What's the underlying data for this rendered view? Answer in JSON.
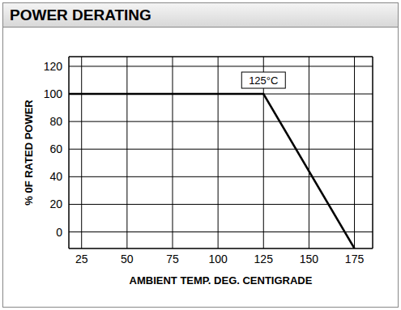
{
  "chart_data": {
    "type": "line",
    "title": "POWER DERATING",
    "x_label": "AMBIENT TEMP. DEG. CENTIGRADE",
    "y_label": "% 0F RATED POWER",
    "x": [
      18,
      125,
      175
    ],
    "values": [
      100,
      100,
      -12
    ],
    "color": "#000000",
    "xlim": [
      18,
      185
    ],
    "ylim": [
      -12,
      127
    ],
    "xticks": [
      25,
      50,
      75,
      100,
      125,
      150,
      175
    ],
    "yticks": [
      0,
      20,
      40,
      60,
      80,
      100,
      120
    ],
    "grid": true,
    "annotations": [
      {
        "text": "125°C",
        "x": 125,
        "y": 100
      }
    ]
  }
}
